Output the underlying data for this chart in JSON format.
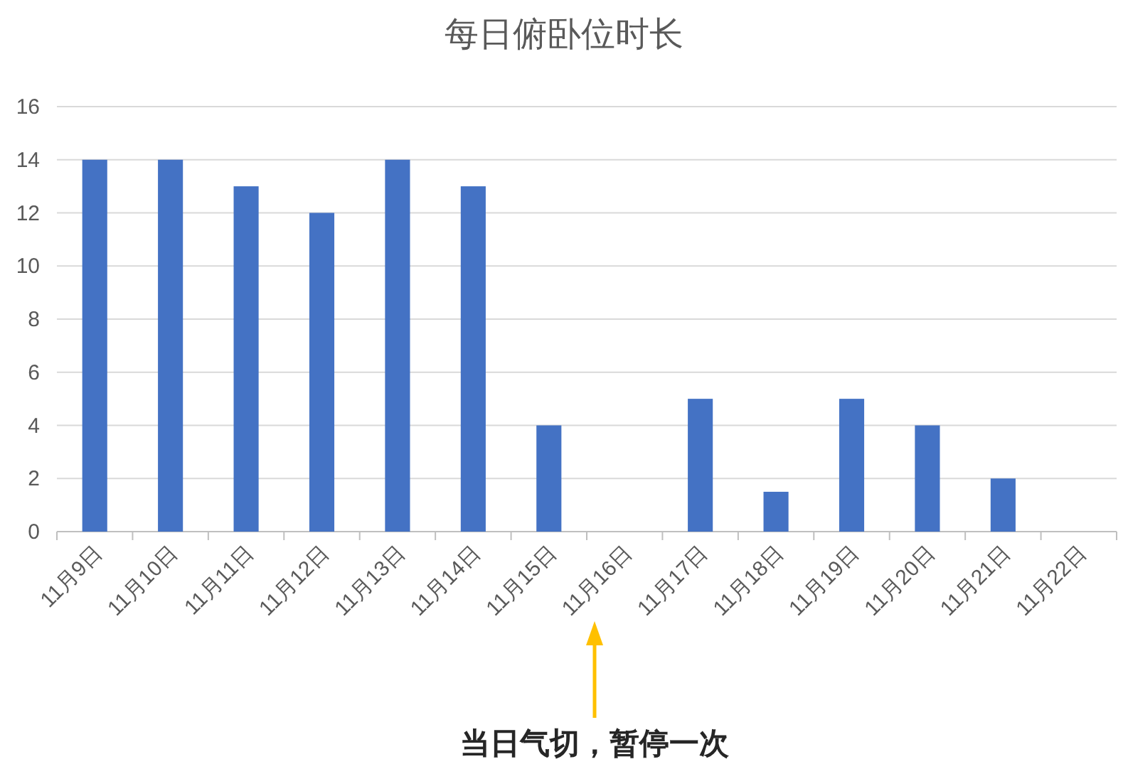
{
  "chart_data": {
    "type": "bar",
    "title": "每日俯卧位时长",
    "categories": [
      "11月9日",
      "11月10日",
      "11月11日",
      "11月12日",
      "11月13日",
      "11月14日",
      "11月15日",
      "11月16日",
      "11月17日",
      "11月18日",
      "11月19日",
      "11月20日",
      "11月21日",
      "11月22日"
    ],
    "values": [
      14,
      14,
      13,
      12,
      14,
      13,
      4,
      null,
      5,
      1.5,
      5,
      4,
      2,
      null
    ],
    "color": "#4472c4",
    "ylim": [
      0,
      16
    ],
    "yticks": [
      0,
      2,
      4,
      6,
      8,
      10,
      12,
      14,
      16
    ],
    "grid": "y",
    "annotations": [
      "当日气切，暂停一次"
    ]
  }
}
